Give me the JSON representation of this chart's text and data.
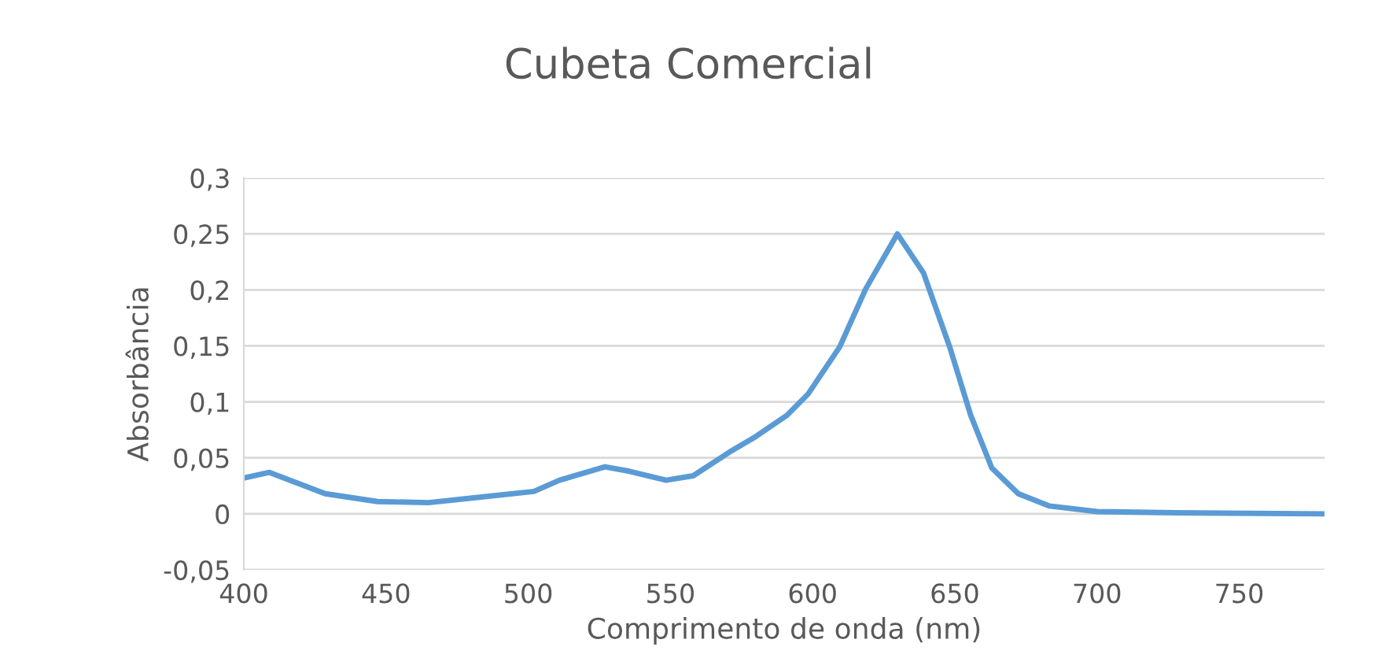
{
  "chart_data": {
    "type": "line",
    "title": "Cubeta Comercial",
    "xlabel": "Comprimento de onda (nm)",
    "ylabel": "Absorbância",
    "x": [
      400,
      409,
      428.6,
      447,
      465,
      483.5,
      502,
      511,
      527,
      535.6,
      548.5,
      558,
      570.7,
      580,
      591,
      598.4,
      609.5,
      618.7,
      629.8,
      639,
      648.2,
      655.6,
      663,
      672.3,
      683.3,
      700,
      727.6,
      780
    ],
    "series": [
      {
        "color": "#5b9bd5",
        "values": [
          0.032,
          0.037,
          0.018,
          0.011,
          0.01,
          0.015,
          0.02,
          0.03,
          0.042,
          0.038,
          0.03,
          0.034,
          0.055,
          0.069,
          0.088,
          0.107,
          0.149,
          0.201,
          0.25,
          0.215,
          0.149,
          0.088,
          0.041,
          0.018,
          0.007,
          0.002,
          0.001,
          0.0
        ]
      }
    ],
    "xlim": [
      400,
      780
    ],
    "xticks": [
      400,
      450,
      500,
      550,
      600,
      650,
      700,
      750
    ],
    "ylim": [
      -0.05,
      0.3
    ],
    "yticks": [
      {
        "value": -0.05,
        "label": "-0,05"
      },
      0,
      {
        "value": 0.05,
        "label": "0,05"
      },
      {
        "value": 0.1,
        "label": "0,1"
      },
      {
        "value": 0.15,
        "label": "0,15"
      },
      {
        "value": 0.2,
        "label": "0,2"
      },
      {
        "value": 0.25,
        "label": "0,25"
      },
      {
        "value": 0.3,
        "label": "0,3"
      }
    ],
    "grid": "y",
    "legend": false,
    "marker": "none",
    "line_style": "solid"
  }
}
